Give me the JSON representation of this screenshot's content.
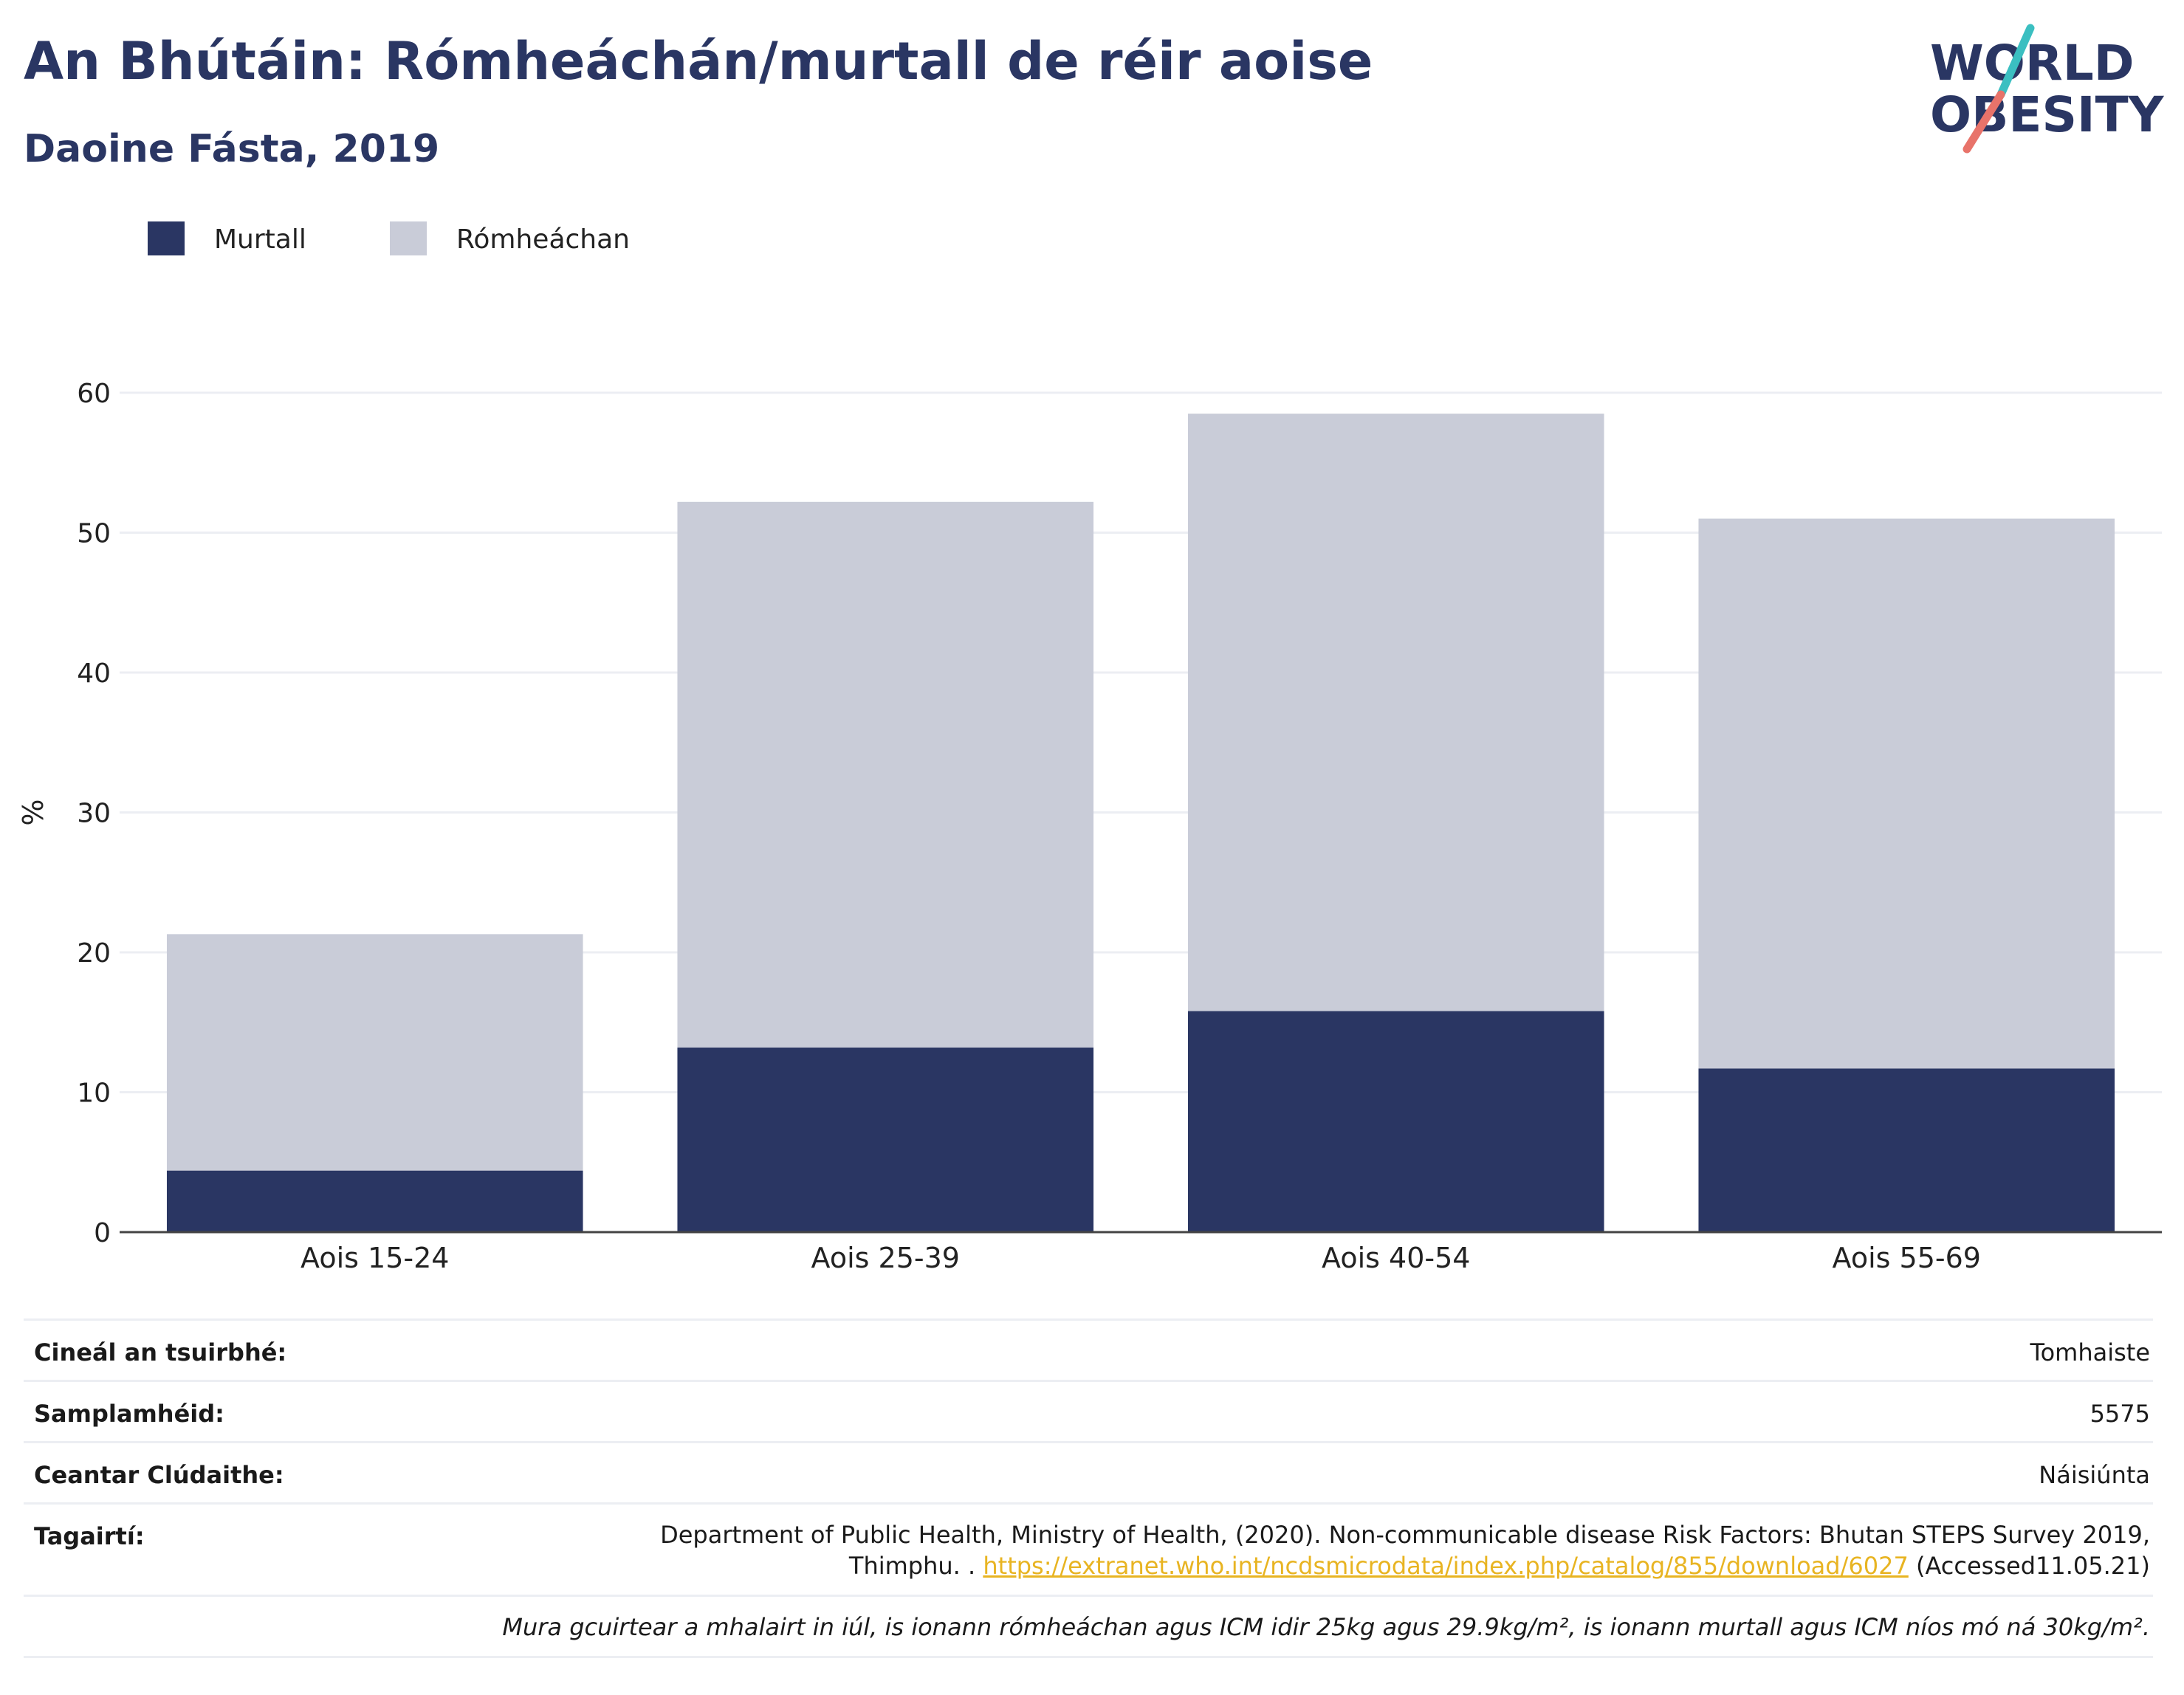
{
  "header": {
    "title": "An Bhútáin: Rómheáchán/murtall de réir aoise",
    "subtitle": "Daoine Fásta, 2019"
  },
  "logo": {
    "line1": "WORLD",
    "line2": "OBESITY",
    "colors": {
      "text": "#2a3663",
      "slash_top": "#3bbfc1",
      "slash_bottom": "#e8736a"
    }
  },
  "chart_data": {
    "type": "bar",
    "stacked": true,
    "categories": [
      "Aois 15-24",
      "Aois 25-39",
      "Aois 40-54",
      "Aois 55-69"
    ],
    "series": [
      {
        "name": "Murtall",
        "color": "#2a3663",
        "values": [
          4.4,
          13.2,
          15.8,
          11.7
        ]
      },
      {
        "name": "Rómheáchan",
        "color": "#c9ccd8",
        "values": [
          16.9,
          39.0,
          42.7,
          39.3
        ]
      }
    ],
    "ylabel": "%",
    "ylim": [
      0,
      60
    ],
    "yticks": [
      0,
      10,
      20,
      30,
      40,
      50,
      60
    ],
    "grid": true,
    "legend_position": "top-left"
  },
  "info": {
    "survey_type": {
      "label": "Cineál an tsuirbhé:",
      "value": "Tomhaiste"
    },
    "sample_size": {
      "label": "Samplamhéid:",
      "value": "5575"
    },
    "coverage": {
      "label": "Ceantar Clúdaithe:",
      "value": "Náisiúnta"
    },
    "references": {
      "label": "Tagairtí:",
      "line1": "Department of Public Health, Ministry of Health, (2020). Non-communicable disease Risk Factors: Bhutan STEPS Survey 2019,",
      "line2_prefix": "Thimphu. . ",
      "link": "https://extranet.who.int/ncdsmicrodata/index.php/catalog/855/download/6027",
      "line2_suffix": " (Accessed11.05.21)"
    },
    "note": "Mura gcuirtear a mhalairt in iúl, is ionann rómheáchan agus ICM idir 25kg agus 29.9kg/m², is ionann murtall agus ICM níos mó ná 30kg/m²."
  }
}
